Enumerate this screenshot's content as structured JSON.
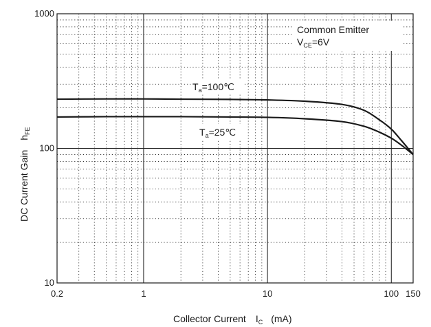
{
  "chart_data": {
    "type": "line",
    "title": "",
    "xlabel": "Collector Current",
    "xlabel_symbol": "I",
    "xlabel_symbol_sub": "C",
    "xlabel_unit": "(mA)",
    "ylabel": "DC Current Gain",
    "ylabel_symbol": "h",
    "ylabel_symbol_sub": "FE",
    "x_scale": "log",
    "y_scale": "log",
    "xlim": [
      0.2,
      150
    ],
    "ylim": [
      10,
      1000
    ],
    "x_ticks": [
      {
        "value": 0.2,
        "label": "0.2"
      },
      {
        "value": 1,
        "label": "1"
      },
      {
        "value": 10,
        "label": "10"
      },
      {
        "value": 100,
        "label": "100"
      },
      {
        "value": 150,
        "label": "150"
      }
    ],
    "y_ticks": [
      {
        "value": 10,
        "label": "10"
      },
      {
        "value": 100,
        "label": "100"
      },
      {
        "value": 1000,
        "label": "1000"
      }
    ],
    "grid": true,
    "conditions": {
      "line1": "Common Emitter",
      "line2_prefix": "V",
      "line2_sub": "CE",
      "line2_suffix": "=6V",
      "placement": "top-right"
    },
    "series": [
      {
        "label_prefix": "T",
        "label_sub": "a",
        "label_suffix": "=100℃",
        "x": [
          0.2,
          0.5,
          1,
          2,
          5,
          10,
          20,
          40,
          60,
          80,
          100,
          120,
          150
        ],
        "y": [
          232,
          233,
          233,
          232,
          231,
          229,
          224,
          212,
          192,
          163,
          139,
          115,
          90
        ]
      },
      {
        "label_prefix": "T",
        "label_sub": "a",
        "label_suffix": "=25℃",
        "x": [
          0.2,
          0.5,
          1,
          2,
          5,
          10,
          20,
          40,
          60,
          80,
          100,
          120,
          150
        ],
        "y": [
          171,
          172,
          172,
          172,
          171,
          170,
          166,
          158,
          146,
          132,
          119,
          106,
          90
        ]
      }
    ],
    "line_color": "#1a1a1a"
  }
}
